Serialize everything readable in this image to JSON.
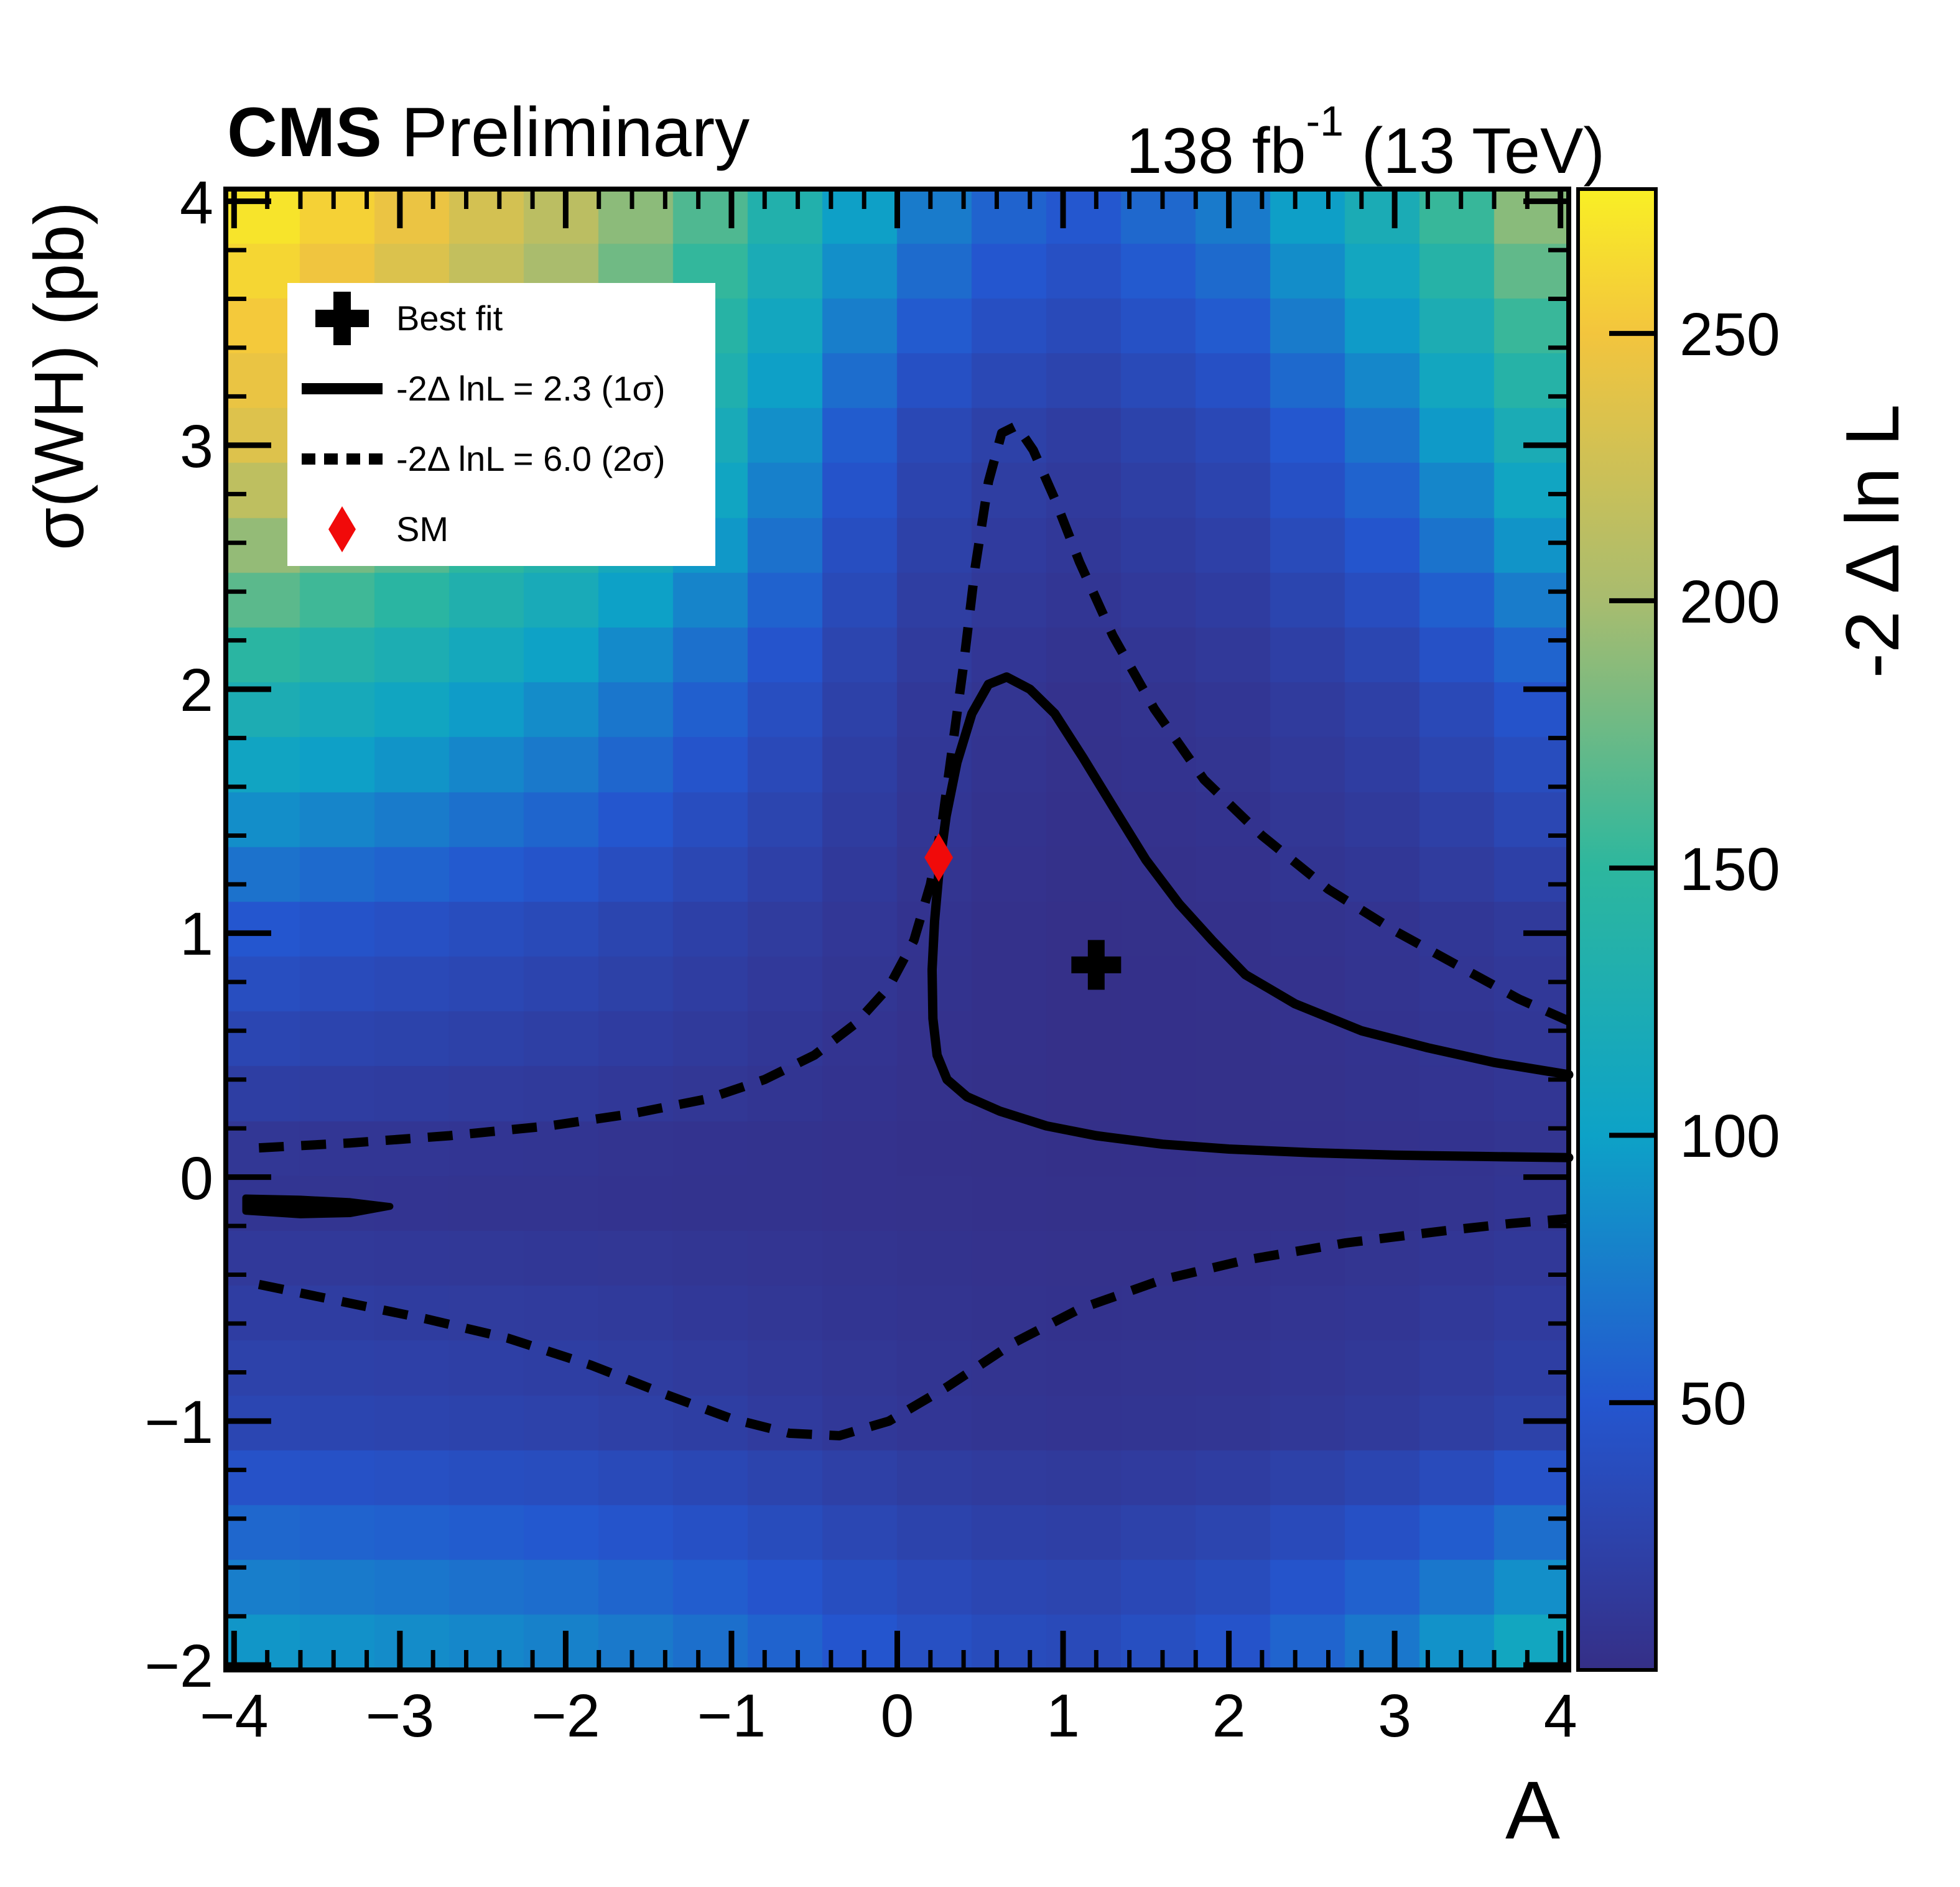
{
  "header": {
    "cms": "CMS",
    "preliminary": " Preliminary",
    "lumi_prefix": "138 fb",
    "lumi_sup": "-1",
    "lumi_suffix": " (13 TeV)"
  },
  "legend": {
    "items": [
      {
        "icon": "cross",
        "label": "Best fit"
      },
      {
        "icon": "solid-line",
        "label": "-2Δ lnL = 2.3 (1σ)"
      },
      {
        "icon": "dashed-line",
        "label": "-2Δ lnL = 6.0 (2σ)"
      },
      {
        "icon": "diamond",
        "label": "SM"
      }
    ]
  },
  "chart_data": {
    "type": "heatmap",
    "title": "CMS Preliminary, 138 fb-1 (13 TeV)",
    "xlabel": "A",
    "ylabel": "σ(WH) (pb)",
    "zlabel": "-2 Δ ln L",
    "x_range": [
      -4.05,
      4.05
    ],
    "y_range": [
      -2.02,
      4.05
    ],
    "z_range": [
      0,
      277
    ],
    "nbins_x": 18,
    "nbins_y": 27,
    "x_ticks": [
      {
        "v": -4,
        "label": "−4"
      },
      {
        "v": -3,
        "label": "−3"
      },
      {
        "v": -2,
        "label": "−2"
      },
      {
        "v": -1,
        "label": "−1"
      },
      {
        "v": 0,
        "label": "0"
      },
      {
        "v": 1,
        "label": "1"
      },
      {
        "v": 2,
        "label": "2"
      },
      {
        "v": 3,
        "label": "3"
      },
      {
        "v": 4,
        "label": "4"
      }
    ],
    "y_ticks": [
      {
        "v": -2,
        "label": "−2"
      },
      {
        "v": -1,
        "label": "−1"
      },
      {
        "v": 0,
        "label": "0"
      },
      {
        "v": 1,
        "label": "1"
      },
      {
        "v": 2,
        "label": "2"
      },
      {
        "v": 3,
        "label": "3"
      },
      {
        "v": 4,
        "label": "4"
      }
    ],
    "z_ticks": [
      {
        "v": 50,
        "label": "50"
      },
      {
        "v": 100,
        "label": "100"
      },
      {
        "v": 150,
        "label": "150"
      },
      {
        "v": 200,
        "label": "200"
      },
      {
        "v": 250,
        "label": "250"
      }
    ],
    "minor_tick_step": 0.2,
    "grid_A": [
      -4,
      -3,
      -2,
      -1,
      0,
      1,
      2,
      3,
      4
    ],
    "grid_sigma": [
      -2,
      -1,
      0,
      1,
      2,
      3,
      4
    ],
    "grid_values": [
      [
        100,
        92,
        84,
        70,
        48,
        36,
        50,
        80,
        125
      ],
      [
        30,
        27,
        24,
        18,
        10,
        6.5,
        8,
        14,
        25
      ],
      [
        5,
        4.5,
        4,
        3.5,
        3,
        1.5,
        2,
        4,
        7
      ],
      [
        50,
        42,
        33,
        20,
        7,
        1,
        2.5,
        7,
        15
      ],
      [
        135,
        115,
        90,
        55,
        15,
        4,
        9,
        24,
        55
      ],
      [
        240,
        205,
        165,
        110,
        35,
        15,
        30,
        70,
        130
      ],
      [
        277,
        250,
        215,
        160,
        85,
        50,
        75,
        130,
        205
      ]
    ],
    "colormap": [
      {
        "t": 0.0,
        "c": [
          53,
          47,
          135
        ]
      },
      {
        "t": 0.181,
        "c": [
          36,
          86,
          207
        ]
      },
      {
        "t": 0.361,
        "c": [
          13,
          162,
          199
        ]
      },
      {
        "t": 0.542,
        "c": [
          45,
          183,
          158
        ]
      },
      {
        "t": 0.722,
        "c": [
          168,
          188,
          111
        ]
      },
      {
        "t": 0.903,
        "c": [
          243,
          197,
          61
        ]
      },
      {
        "t": 1.0,
        "c": [
          249,
          239,
          37
        ]
      }
    ],
    "contours": {
      "sigma1_level": 2.3,
      "sigma2_level": 6.0,
      "solid_main": [
        [
          4.05,
          0.42
        ],
        [
          3.6,
          0.47
        ],
        [
          3.2,
          0.53
        ],
        [
          2.8,
          0.6
        ],
        [
          2.4,
          0.71
        ],
        [
          2.1,
          0.83
        ],
        [
          1.9,
          0.97
        ],
        [
          1.7,
          1.12
        ],
        [
          1.5,
          1.3
        ],
        [
          1.3,
          1.52
        ],
        [
          1.12,
          1.72
        ],
        [
          0.95,
          1.9
        ],
        [
          0.8,
          2.0
        ],
        [
          0.66,
          2.05
        ],
        [
          0.55,
          2.02
        ],
        [
          0.45,
          1.9
        ],
        [
          0.36,
          1.7
        ],
        [
          0.295,
          1.48
        ],
        [
          0.255,
          1.28
        ],
        [
          0.225,
          1.05
        ],
        [
          0.21,
          0.85
        ],
        [
          0.215,
          0.65
        ],
        [
          0.24,
          0.5
        ],
        [
          0.3,
          0.4
        ],
        [
          0.42,
          0.33
        ],
        [
          0.62,
          0.27
        ],
        [
          0.9,
          0.21
        ],
        [
          1.2,
          0.17
        ],
        [
          1.6,
          0.135
        ],
        [
          2.0,
          0.115
        ],
        [
          2.5,
          0.1
        ],
        [
          3.0,
          0.09
        ],
        [
          3.5,
          0.085
        ],
        [
          4.05,
          0.08
        ]
      ],
      "solid_left_blob": [
        [
          -3.93,
          -0.085
        ],
        [
          -3.6,
          -0.09
        ],
        [
          -3.3,
          -0.1
        ],
        [
          -3.06,
          -0.12
        ],
        [
          -3.3,
          -0.15
        ],
        [
          -3.6,
          -0.155
        ],
        [
          -3.93,
          -0.14
        ]
      ],
      "dashed_upper": [
        [
          -3.85,
          0.12
        ],
        [
          -3.3,
          0.14
        ],
        [
          -2.7,
          0.17
        ],
        [
          -2.1,
          0.21
        ],
        [
          -1.6,
          0.26
        ],
        [
          -1.15,
          0.32
        ],
        [
          -0.8,
          0.4
        ],
        [
          -0.5,
          0.5
        ],
        [
          -0.25,
          0.63
        ],
        [
          -0.05,
          0.78
        ],
        [
          0.1,
          0.97
        ],
        [
          0.2,
          1.2
        ],
        [
          0.27,
          1.45
        ],
        [
          0.33,
          1.75
        ],
        [
          0.4,
          2.1
        ],
        [
          0.47,
          2.5
        ],
        [
          0.55,
          2.85
        ],
        [
          0.63,
          3.05
        ],
        [
          0.72,
          3.08
        ],
        [
          0.82,
          2.98
        ],
        [
          0.95,
          2.78
        ],
        [
          1.1,
          2.52
        ],
        [
          1.3,
          2.22
        ],
        [
          1.55,
          1.92
        ],
        [
          1.85,
          1.63
        ],
        [
          2.2,
          1.4
        ],
        [
          2.6,
          1.18
        ],
        [
          3.0,
          1.01
        ],
        [
          3.4,
          0.86
        ],
        [
          3.75,
          0.73
        ],
        [
          4.05,
          0.64
        ]
      ],
      "dashed_lower": [
        [
          -3.85,
          -0.44
        ],
        [
          -3.35,
          -0.51
        ],
        [
          -2.85,
          -0.58
        ],
        [
          -2.35,
          -0.66
        ],
        [
          -1.85,
          -0.77
        ],
        [
          -1.4,
          -0.89
        ],
        [
          -1.0,
          -0.99
        ],
        [
          -0.65,
          -1.05
        ],
        [
          -0.35,
          -1.06
        ],
        [
          -0.05,
          -1.0
        ],
        [
          0.3,
          -0.86
        ],
        [
          0.7,
          -0.68
        ],
        [
          1.1,
          -0.54
        ],
        [
          1.6,
          -0.42
        ],
        [
          2.1,
          -0.34
        ],
        [
          2.7,
          -0.27
        ],
        [
          3.3,
          -0.22
        ],
        [
          3.7,
          -0.19
        ],
        [
          4.05,
          -0.17
        ]
      ]
    },
    "best_fit": {
      "A": 1.2,
      "sigma_wh": 0.87
    },
    "sm_point": {
      "A": 0.25,
      "sigma_wh": 1.31
    },
    "marker_colors": {
      "best_fit": "#000000",
      "sm": "#f10a0a"
    },
    "layout": {
      "plot": [
        363,
        304,
        2159,
        2381
      ],
      "colorbar_x": 2537,
      "colorbar_w": 125
    }
  }
}
